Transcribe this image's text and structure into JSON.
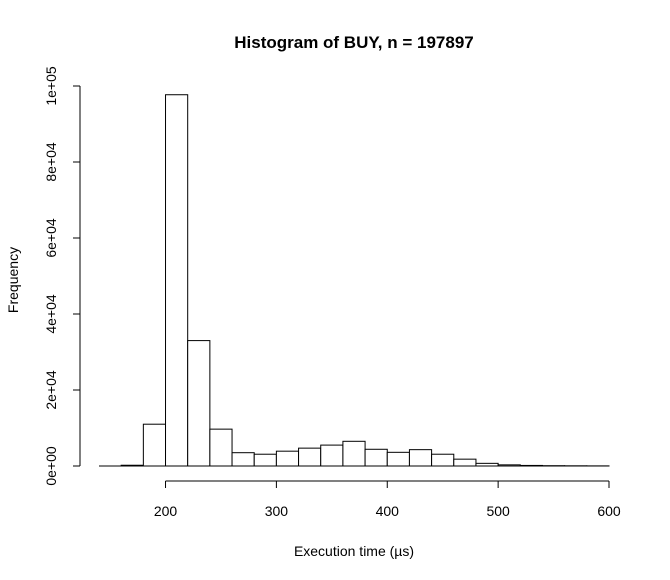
{
  "chart_data": {
    "type": "bar",
    "title": "Histogram of BUY, n = 197897",
    "xlabel": "Execution time (µs)",
    "ylabel": "Frequency",
    "bin_width": 20,
    "bins": [
      {
        "start": 140,
        "end": 160,
        "count": 0
      },
      {
        "start": 160,
        "end": 180,
        "count": 200
      },
      {
        "start": 180,
        "end": 200,
        "count": 11000
      },
      {
        "start": 200,
        "end": 220,
        "count": 97700
      },
      {
        "start": 220,
        "end": 240,
        "count": 33000
      },
      {
        "start": 240,
        "end": 260,
        "count": 9700
      },
      {
        "start": 260,
        "end": 280,
        "count": 3500
      },
      {
        "start": 280,
        "end": 300,
        "count": 3100
      },
      {
        "start": 300,
        "end": 320,
        "count": 3900
      },
      {
        "start": 320,
        "end": 340,
        "count": 4700
      },
      {
        "start": 340,
        "end": 360,
        "count": 5500
      },
      {
        "start": 360,
        "end": 380,
        "count": 6500
      },
      {
        "start": 380,
        "end": 400,
        "count": 4400
      },
      {
        "start": 400,
        "end": 420,
        "count": 3600
      },
      {
        "start": 420,
        "end": 440,
        "count": 4300
      },
      {
        "start": 440,
        "end": 460,
        "count": 3100
      },
      {
        "start": 460,
        "end": 480,
        "count": 1800
      },
      {
        "start": 480,
        "end": 500,
        "count": 700
      },
      {
        "start": 500,
        "end": 520,
        "count": 300
      },
      {
        "start": 520,
        "end": 540,
        "count": 150
      },
      {
        "start": 540,
        "end": 560,
        "count": 80
      },
      {
        "start": 560,
        "end": 580,
        "count": 50
      },
      {
        "start": 580,
        "end": 600,
        "count": 30
      }
    ],
    "xlim": [
      140,
      600
    ],
    "ylim": [
      0,
      100000
    ],
    "x_ticks": [
      200,
      300,
      400,
      500,
      600
    ],
    "x_tick_labels": [
      "200",
      "300",
      "400",
      "500",
      "600"
    ],
    "y_ticks": [
      0,
      20000,
      40000,
      60000,
      80000,
      100000
    ],
    "y_tick_labels": [
      "0e+00",
      "2e+04",
      "4e+04",
      "6e+04",
      "8e+04",
      "1e+05"
    ],
    "grid": false,
    "legend": "none"
  }
}
